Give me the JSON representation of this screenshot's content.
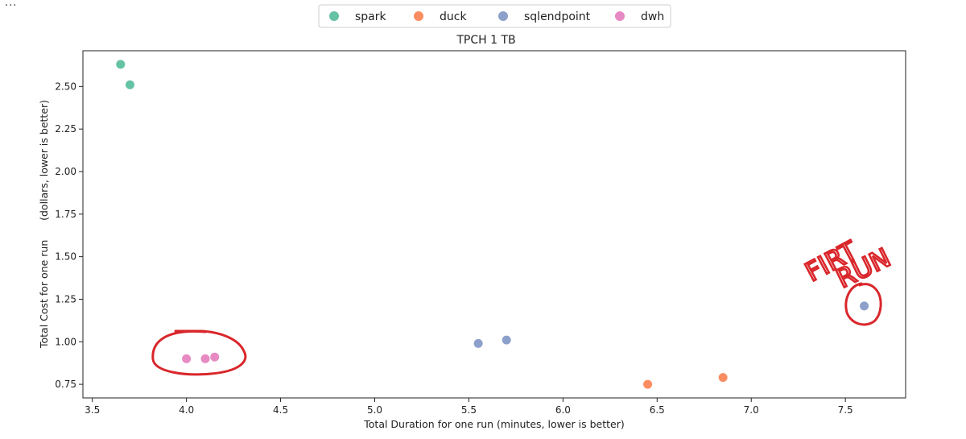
{
  "ellipsis": "...",
  "colors": {
    "spark": "#66c2a5",
    "duck": "#fc8d62",
    "sqlendpoint": "#8da0cb",
    "dwh": "#e78ac3",
    "annotation": "#d9262b"
  },
  "chart_data": {
    "type": "scatter",
    "title": "TPCH 1 TB",
    "xlabel": "Total Duration for one run (minutes, lower is better)",
    "ylabel": "Total Cost for one run      (dollars, lower is better)",
    "xlim": [
      3.45,
      7.82
    ],
    "ylim": [
      0.67,
      2.71
    ],
    "xticks": [
      "3.5",
      "4.0",
      "4.5",
      "5.0",
      "5.5",
      "6.0",
      "6.5",
      "7.0",
      "7.5"
    ],
    "yticks": [
      "0.75",
      "1.00",
      "1.25",
      "1.50",
      "1.75",
      "2.00",
      "2.25",
      "2.50"
    ],
    "legend_position": "top-center",
    "grid": false,
    "series": [
      {
        "name": "spark",
        "points": [
          {
            "x": 3.65,
            "y": 2.63
          },
          {
            "x": 3.7,
            "y": 2.51
          }
        ]
      },
      {
        "name": "duck",
        "points": [
          {
            "x": 6.45,
            "y": 0.75
          },
          {
            "x": 6.85,
            "y": 0.79
          }
        ]
      },
      {
        "name": "sqlendpoint",
        "points": [
          {
            "x": 5.55,
            "y": 0.99
          },
          {
            "x": 5.7,
            "y": 1.01
          },
          {
            "x": 7.6,
            "y": 1.21
          }
        ]
      },
      {
        "name": "dwh",
        "points": [
          {
            "x": 4.0,
            "y": 0.9
          },
          {
            "x": 4.1,
            "y": 0.9
          },
          {
            "x": 4.15,
            "y": 0.91
          }
        ]
      }
    ],
    "annotations": [
      {
        "text": "FIRT",
        "note": "handwritten"
      },
      {
        "text": "RUN",
        "note": "handwritten"
      }
    ]
  }
}
